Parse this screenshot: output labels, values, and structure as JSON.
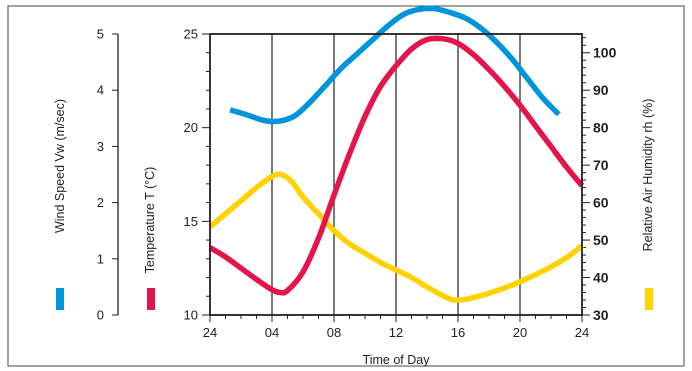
{
  "chart_data": {
    "type": "line",
    "xlabel": "Time of Day",
    "x_ticks": [
      "24",
      "04",
      "08",
      "12",
      "16",
      "20",
      "24"
    ],
    "x_hours": [
      0,
      4,
      8,
      12,
      16,
      20,
      24
    ],
    "x_vertical_gridlines_at_hours": [
      4,
      8,
      12,
      16,
      20
    ],
    "axes": {
      "wind": {
        "label": "Wind Speed Vw (m/sec)",
        "ticks": [
          "0",
          "1",
          "2",
          "3",
          "4",
          "5"
        ],
        "range": [
          0,
          5
        ]
      },
      "temperature": {
        "label": "Temperature T (°C)",
        "ticks": [
          "10",
          "15",
          "20",
          "25"
        ],
        "range": [
          10,
          25
        ]
      },
      "humidity": {
        "label": "Relative Air Humidity rh (%)",
        "ticks": [
          "30",
          "40",
          "50",
          "60",
          "70",
          "80",
          "90",
          "100"
        ],
        "range": [
          30,
          105
        ]
      }
    },
    "series": [
      {
        "key": "wind",
        "color": "#0095da",
        "points": [
          [
            1.3,
            3.65
          ],
          [
            2.5,
            3.55
          ],
          [
            3.5,
            3.46
          ],
          [
            4.5,
            3.45
          ],
          [
            5.5,
            3.55
          ],
          [
            6.5,
            3.8
          ],
          [
            7.5,
            4.1
          ],
          [
            8.5,
            4.4
          ],
          [
            9.5,
            4.65
          ],
          [
            10.5,
            4.9
          ],
          [
            11.5,
            5.15
          ],
          [
            12.5,
            5.35
          ],
          [
            13.5,
            5.44
          ],
          [
            14.5,
            5.45
          ],
          [
            15.5,
            5.38
          ],
          [
            16.5,
            5.28
          ],
          [
            17.5,
            5.1
          ],
          [
            18.5,
            4.85
          ],
          [
            19.5,
            4.55
          ],
          [
            20.5,
            4.2
          ],
          [
            21.5,
            3.85
          ],
          [
            22.5,
            3.57
          ]
        ]
      },
      {
        "key": "temperature",
        "color": "#e4154b",
        "points": [
          [
            0,
            13.6
          ],
          [
            1,
            13.1
          ],
          [
            2,
            12.5
          ],
          [
            3,
            11.9
          ],
          [
            4,
            11.35
          ],
          [
            4.5,
            11.2
          ],
          [
            5,
            11.3
          ],
          [
            6,
            12.3
          ],
          [
            7,
            14.1
          ],
          [
            8,
            16.4
          ],
          [
            9,
            18.6
          ],
          [
            10,
            20.6
          ],
          [
            11,
            22.2
          ],
          [
            12,
            23.3
          ],
          [
            13,
            24.2
          ],
          [
            14,
            24.7
          ],
          [
            15,
            24.75
          ],
          [
            16,
            24.5
          ],
          [
            17,
            23.9
          ],
          [
            18,
            23.1
          ],
          [
            19,
            22.2
          ],
          [
            20,
            21.2
          ],
          [
            21,
            20.1
          ],
          [
            22,
            19.0
          ],
          [
            23,
            17.9
          ],
          [
            24,
            16.9
          ]
        ]
      },
      {
        "key": "humidity",
        "color": "#ffd200",
        "points": [
          [
            0,
            53.5
          ],
          [
            1,
            57
          ],
          [
            2,
            60.5
          ],
          [
            3,
            64
          ],
          [
            4,
            67
          ],
          [
            4.6,
            67.5
          ],
          [
            5.3,
            65.5
          ],
          [
            6,
            61.5
          ],
          [
            7,
            57
          ],
          [
            8,
            52.5
          ],
          [
            9,
            49
          ],
          [
            10,
            46.5
          ],
          [
            11,
            44
          ],
          [
            12,
            42
          ],
          [
            13,
            40
          ],
          [
            14,
            37.5
          ],
          [
            15,
            35.2
          ],
          [
            15.7,
            34
          ],
          [
            16.5,
            34.2
          ],
          [
            17.5,
            35.2
          ],
          [
            18.5,
            36.5
          ],
          [
            19.5,
            38
          ],
          [
            20.5,
            39.8
          ],
          [
            21.5,
            41.8
          ],
          [
            22.5,
            44
          ],
          [
            23.3,
            46.2
          ],
          [
            24,
            48.5
          ]
        ]
      }
    ],
    "legend": {
      "wind_color": "#0095da",
      "temperature_color": "#e4154b",
      "humidity_color": "#ffd200"
    }
  }
}
